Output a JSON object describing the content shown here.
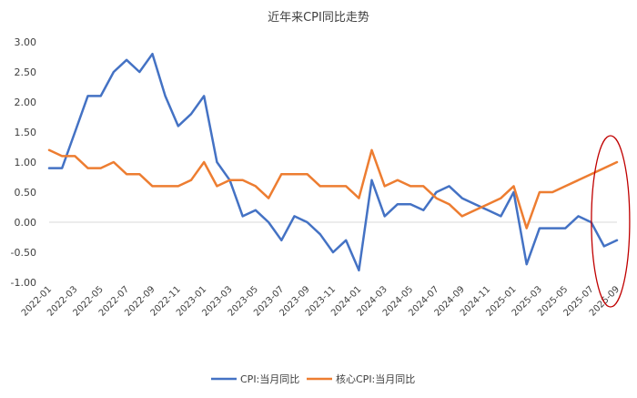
{
  "chart_data": {
    "type": "line",
    "title": "近年来CPI同比走势",
    "xlabel": "",
    "ylabel": "",
    "ylim": [
      -1.0,
      3.0
    ],
    "yticks": [
      "3.00",
      "2.50",
      "2.00",
      "1.50",
      "1.00",
      "0.50",
      "0.00",
      "-0.50",
      "-1.00"
    ],
    "grid": false,
    "legend": "bottom",
    "x": [
      "2022-01",
      "2022-02",
      "2022-03",
      "2022-04",
      "2022-05",
      "2022-06",
      "2022-07",
      "2022-08",
      "2022-09",
      "2022-10",
      "2022-11",
      "2022-12",
      "2023-01",
      "2023-02",
      "2023-03",
      "2023-04",
      "2023-05",
      "2023-06",
      "2023-07",
      "2023-08",
      "2023-09",
      "2023-10",
      "2023-11",
      "2023-12",
      "2024-01",
      "2024-02",
      "2024-03",
      "2024-04",
      "2024-05",
      "2024-06",
      "2024-07",
      "2024-08",
      "2024-09",
      "2024-10",
      "2024-11",
      "2024-12",
      "2025-01",
      "2025-02",
      "2025-03",
      "2025-04",
      "2025-05",
      "2025-06",
      "2025-07",
      "2025-08",
      "2025-09"
    ],
    "xtick_labels": [
      "2022-01",
      "2022-03",
      "2022-05",
      "2022-07",
      "2022-09",
      "2022-11",
      "2023-01",
      "2023-03",
      "2023-05",
      "2023-07",
      "2023-09",
      "2023-11",
      "2024-01",
      "2024-03",
      "2024-05",
      "2024-07",
      "2024-09",
      "2024-11",
      "2025-01",
      "2025-03",
      "2025-05",
      "2025-07",
      "2025-09"
    ],
    "series": [
      {
        "name": "CPI:当月同比",
        "color": "#4472C4",
        "values": [
          0.9,
          0.9,
          1.5,
          2.1,
          2.1,
          2.5,
          2.7,
          2.5,
          2.8,
          2.1,
          1.6,
          1.8,
          2.1,
          1.0,
          0.7,
          0.1,
          0.2,
          0.0,
          -0.3,
          0.1,
          0.0,
          -0.2,
          -0.5,
          -0.3,
          -0.8,
          0.7,
          0.1,
          0.3,
          0.3,
          0.2,
          0.5,
          0.6,
          0.4,
          0.3,
          0.2,
          0.1,
          0.5,
          -0.7,
          -0.1,
          -0.1,
          -0.1,
          0.1,
          0.0,
          -0.4,
          -0.3
        ]
      },
      {
        "name": "核心CPI:当月同比",
        "color": "#ED7D31",
        "values": [
          1.2,
          1.1,
          1.1,
          0.9,
          0.9,
          1.0,
          0.8,
          0.8,
          0.6,
          0.6,
          0.6,
          0.7,
          1.0,
          0.6,
          0.7,
          0.7,
          0.6,
          0.4,
          0.8,
          0.8,
          0.8,
          0.6,
          0.6,
          0.6,
          0.4,
          1.2,
          0.6,
          0.7,
          0.6,
          0.6,
          0.4,
          0.3,
          0.1,
          0.2,
          0.3,
          0.4,
          0.6,
          -0.1,
          0.5,
          0.5,
          0.6,
          0.7,
          0.8,
          0.9,
          1.0
        ]
      }
    ],
    "annotation": {
      "shape": "ellipse",
      "color": "#C00000",
      "target": [
        "2025-08",
        "2025-09"
      ]
    }
  }
}
